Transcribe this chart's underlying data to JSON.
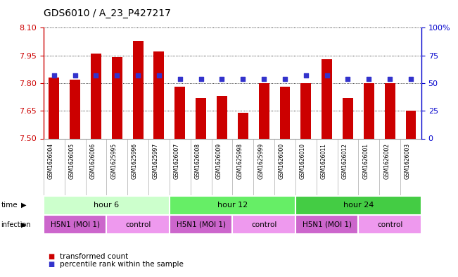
{
  "title": "GDS6010 / A_23_P427217",
  "samples": [
    "GSM1626004",
    "GSM1626005",
    "GSM1626006",
    "GSM1625995",
    "GSM1625996",
    "GSM1625997",
    "GSM1626007",
    "GSM1626008",
    "GSM1626009",
    "GSM1625998",
    "GSM1625999",
    "GSM1626000",
    "GSM1626010",
    "GSM1626011",
    "GSM1626012",
    "GSM1626001",
    "GSM1626002",
    "GSM1626003"
  ],
  "bar_values": [
    7.83,
    7.82,
    7.96,
    7.94,
    8.03,
    7.97,
    7.78,
    7.72,
    7.73,
    7.64,
    7.8,
    7.78,
    7.8,
    7.93,
    7.72,
    7.8,
    7.8,
    7.65
  ],
  "blue_values": [
    57,
    57,
    57,
    57,
    57,
    57,
    54,
    54,
    54,
    54,
    54,
    54,
    57,
    57,
    54,
    54,
    54,
    54
  ],
  "ymin": 7.5,
  "ymax": 8.1,
  "y_ticks": [
    7.5,
    7.65,
    7.8,
    7.95,
    8.1
  ],
  "right_yticks": [
    0,
    25,
    50,
    75,
    100
  ],
  "right_ytick_labels": [
    "0",
    "25",
    "50",
    "75",
    "100%"
  ],
  "bar_color": "#cc0000",
  "blue_color": "#3333cc",
  "time_groups": [
    {
      "label": "hour 6",
      "start": 0,
      "end": 6,
      "color": "#ccffcc"
    },
    {
      "label": "hour 12",
      "start": 6,
      "end": 12,
      "color": "#66ee66"
    },
    {
      "label": "hour 24",
      "start": 12,
      "end": 18,
      "color": "#44cc44"
    }
  ],
  "infection_groups": [
    {
      "label": "H5N1 (MOI 1)",
      "start": 0,
      "end": 3,
      "color": "#cc66cc"
    },
    {
      "label": "control",
      "start": 3,
      "end": 6,
      "color": "#ee99ee"
    },
    {
      "label": "H5N1 (MOI 1)",
      "start": 6,
      "end": 9,
      "color": "#cc66cc"
    },
    {
      "label": "control",
      "start": 9,
      "end": 12,
      "color": "#ee99ee"
    },
    {
      "label": "H5N1 (MOI 1)",
      "start": 12,
      "end": 15,
      "color": "#cc66cc"
    },
    {
      "label": "control",
      "start": 15,
      "end": 18,
      "color": "#ee99ee"
    }
  ],
  "ylabel_color": "#cc0000",
  "right_ylabel_color": "#0000cc",
  "legend_items": [
    {
      "color": "#cc0000",
      "label": "transformed count"
    },
    {
      "color": "#3333cc",
      "label": "percentile rank within the sample"
    }
  ]
}
